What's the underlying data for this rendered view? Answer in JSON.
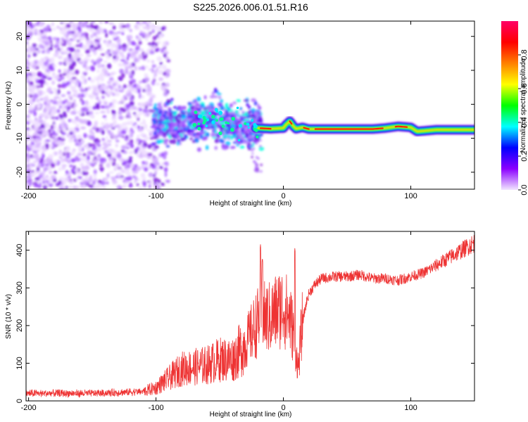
{
  "title": "S225.2026.006.01.51.R16",
  "chart_data": [
    {
      "type": "heatmap",
      "xlabel": "Height of straight line (km)",
      "ylabel": "Frequency (Hz)",
      "xlim": [
        -202,
        150
      ],
      "ylim": [
        -25,
        24.5
      ],
      "xticks": [
        -200,
        -100,
        0,
        100
      ],
      "yticks": [
        -20,
        -10,
        0,
        10,
        20
      ],
      "colorbar": {
        "label": "Normalized spectral amplitude",
        "range": [
          0,
          1
        ],
        "ticks": [
          0.0,
          0.2,
          0.4,
          0.6,
          0.8
        ],
        "colors": [
          "#f2e6ff",
          "#8b00ff",
          "#0000ff",
          "#00ffff",
          "#00ff00",
          "#ffff00",
          "#ff8000",
          "#ff0000",
          "#ff0066"
        ]
      },
      "ridge": {
        "x": [
          -100,
          -90,
          -80,
          -70,
          -60,
          -50,
          -40,
          -30,
          -20,
          -10,
          0,
          2,
          5,
          8,
          10,
          15,
          20,
          30,
          50,
          70,
          80,
          90,
          100,
          105,
          120,
          150
        ],
        "y": [
          -5.5,
          -5.5,
          -6.0,
          -5.0,
          -4.5,
          -5.5,
          -6.5,
          -7.0,
          -7.0,
          -7.2,
          -7.0,
          -6.0,
          -5.0,
          -6.5,
          -7.2,
          -6.8,
          -7.3,
          -7.3,
          -7.3,
          -7.3,
          -7.0,
          -6.5,
          -6.8,
          -8.0,
          -7.5,
          -7.5
        ]
      }
    },
    {
      "type": "line",
      "xlabel": "Height of straight line (km)",
      "ylabel": "SNR (10 * v/v)",
      "xlim": [
        -202,
        150
      ],
      "ylim": [
        0,
        450
      ],
      "xticks": [
        -200,
        -100,
        0,
        100
      ],
      "yticks": [
        0,
        100,
        200,
        300,
        400
      ],
      "color": "#ee3333",
      "series": [
        {
          "x": [
            -200,
            -150,
            -110,
            -100,
            -90,
            -80,
            -70,
            -60,
            -50,
            -40,
            -30,
            -25,
            -20,
            -18,
            -15,
            -10,
            -5,
            0,
            5,
            8,
            10,
            11,
            12,
            13,
            15,
            18,
            20,
            25,
            30,
            40,
            50,
            60,
            70,
            80,
            90,
            100,
            110,
            120,
            130,
            140,
            150
          ],
          "y": [
            20,
            20,
            25,
            35,
            60,
            85,
            90,
            95,
            110,
            110,
            150,
            180,
            210,
            250,
            220,
            220,
            240,
            250,
            220,
            180,
            130,
            100,
            90,
            140,
            210,
            260,
            285,
            310,
            325,
            330,
            330,
            335,
            325,
            325,
            320,
            330,
            340,
            360,
            380,
            400,
            420
          ]
        }
      ],
      "spikes": [
        {
          "x": -18.0,
          "y": 415
        },
        {
          "x": -16.5,
          "y": 380
        },
        {
          "x": 9.0,
          "y": 405
        }
      ]
    }
  ]
}
